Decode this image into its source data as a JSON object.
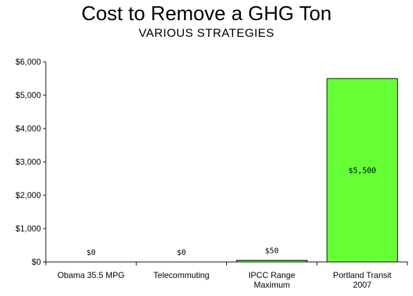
{
  "chart_data": {
    "type": "bar",
    "title": "Cost to Remove a GHG Ton",
    "subtitle": "VARIOUS STRATEGIES",
    "categories": [
      [
        "Obama 35.5 MPG"
      ],
      [
        "Telecommuting"
      ],
      [
        "IPCC Range",
        "Maximum"
      ],
      [
        "Portland Transit",
        "2007"
      ]
    ],
    "values": [
      0,
      0,
      50,
      5500
    ],
    "data_labels": [
      "$0",
      "$0",
      "$50",
      "$5,500"
    ],
    "ylim": [
      0,
      6000
    ],
    "yticks": [
      0,
      1000,
      2000,
      3000,
      4000,
      5000,
      6000
    ],
    "ytick_labels": [
      "$0",
      "$1,000",
      "$2,000",
      "$3,000",
      "$4,000",
      "$5,000",
      "$6,000"
    ],
    "xlabel": "",
    "ylabel": "",
    "grid": false,
    "bar_color": "#66ff33",
    "bar_edge_color": "#000000"
  }
}
